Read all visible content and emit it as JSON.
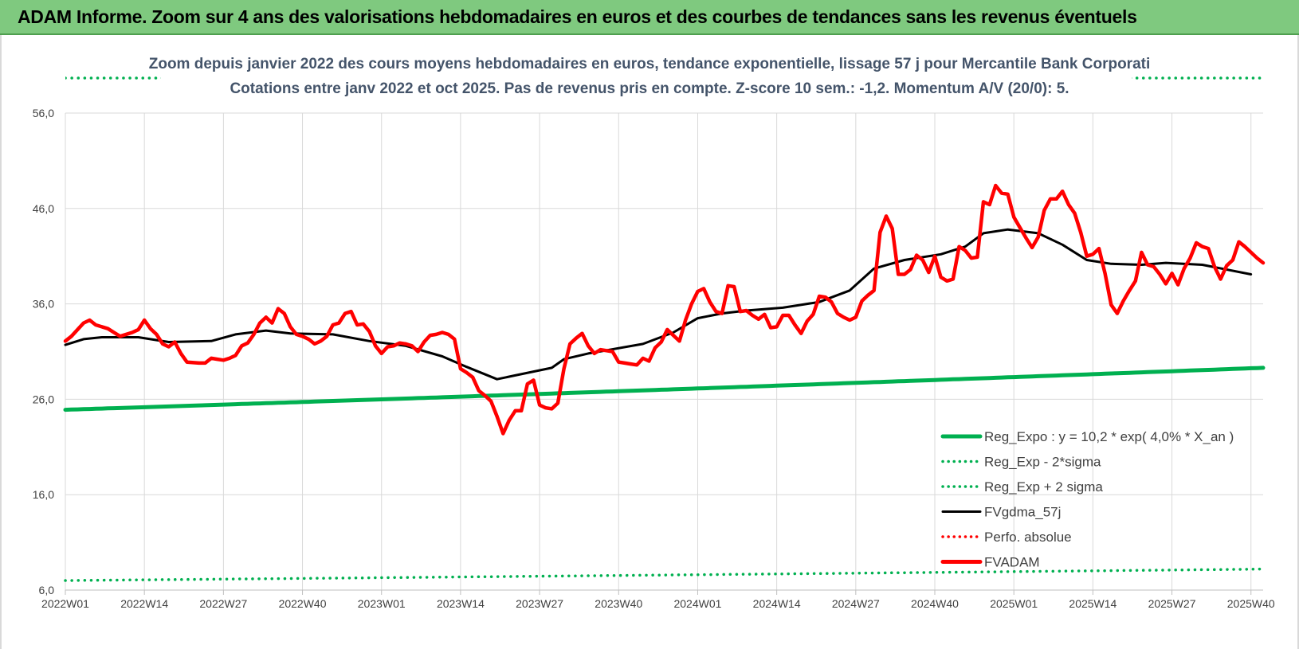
{
  "header": {
    "title": "ADAM Informe. Zoom sur 4 ans des valorisations hebdomadaires en euros et des courbes de tendances sans les revenus éventuels"
  },
  "colors": {
    "header_bg": "#7fc97f",
    "reg_expo": "#00b050",
    "fvgdma": "#000000",
    "fvadam": "#ff0000",
    "grid": "#d9d9d9"
  },
  "chart_data": {
    "type": "line",
    "title": [
      "Zoom depuis janvier 2022 des cours moyens hebdomadaires en euros, tendance exponentielle, lissage 57 j pour Mercantile Bank Corporati",
      "Cotations entre janv 2022 et oct 2025. Pas de revenus pris en compte. Z-score 10 sem.: -1,2. Momentum A/V (20/0): 5."
    ],
    "ylim": [
      6,
      56
    ],
    "yticks": [
      6,
      16,
      26,
      36,
      46,
      56
    ],
    "ytick_labels": [
      "6,0",
      "16,0",
      "26,0",
      "36,0",
      "46,0",
      "56,0"
    ],
    "n_weeks": 197,
    "xtick_labels": [
      "2022W01",
      "2022W14",
      "2022W27",
      "2022W40",
      "2023W01",
      "2023W14",
      "2023W27",
      "2023W40",
      "2024W01",
      "2024W14",
      "2024W27",
      "2024W40",
      "2025W01",
      "2025W14",
      "2025W27",
      "2025W40"
    ],
    "xtick_index": [
      0,
      13,
      26,
      39,
      52,
      65,
      78,
      91,
      104,
      117,
      130,
      143,
      156,
      169,
      182,
      195
    ],
    "legend": [
      {
        "label": "Reg_Expo : y = 10,2 * exp( 4,0% * X_an )",
        "style": "solid-thick",
        "color": "#00b050"
      },
      {
        "label": "Reg_Exp - 2*sigma",
        "style": "dotted",
        "color": "#00b050"
      },
      {
        "label": "Reg_Exp + 2 sigma",
        "style": "dotted",
        "color": "#00b050"
      },
      {
        "label": "FVgdma_57j",
        "style": "solid",
        "color": "#000000"
      },
      {
        "label": "Perfo. absolue",
        "style": "dotted",
        "color": "#ff0000"
      },
      {
        "label": "FVADAM",
        "style": "solid-thick",
        "color": "#ff0000"
      }
    ],
    "series": [
      {
        "name": "Reg_Expo",
        "expo": {
          "start": 24.9,
          "end": 29.3
        }
      },
      {
        "name": "Reg_Exp - 2*sigma",
        "expo": {
          "start": 7.0,
          "end": 8.2
        }
      },
      {
        "name": "Reg_Exp + 2 sigma",
        "expo": {
          "start": 60.1,
          "end": 60.1
        }
      },
      {
        "name": "FVgdma_57j",
        "points": [
          [
            0,
            31.7
          ],
          [
            3,
            32.3
          ],
          [
            6,
            32.5
          ],
          [
            12,
            32.5
          ],
          [
            17,
            32.0
          ],
          [
            24,
            32.1
          ],
          [
            28,
            32.8
          ],
          [
            33,
            33.2
          ],
          [
            37,
            32.9
          ],
          [
            44,
            32.8
          ],
          [
            50,
            32.1
          ],
          [
            56,
            31.6
          ],
          [
            62,
            30.5
          ],
          [
            66,
            29.4
          ],
          [
            71,
            28.1
          ],
          [
            74,
            28.5
          ],
          [
            80,
            29.3
          ],
          [
            82,
            30.2
          ],
          [
            86,
            30.8
          ],
          [
            95,
            31.8
          ],
          [
            100,
            33.0
          ],
          [
            104,
            34.5
          ],
          [
            108,
            35.0
          ],
          [
            112,
            35.3
          ],
          [
            118,
            35.6
          ],
          [
            124,
            36.2
          ],
          [
            129,
            37.4
          ],
          [
            133,
            39.7
          ],
          [
            138,
            40.6
          ],
          [
            144,
            41.2
          ],
          [
            148,
            42.0
          ],
          [
            151,
            43.4
          ],
          [
            155,
            43.8
          ],
          [
            160,
            43.4
          ],
          [
            164,
            42.2
          ],
          [
            168,
            40.6
          ],
          [
            172,
            40.2
          ],
          [
            177,
            40.1
          ],
          [
            181,
            40.3
          ],
          [
            187,
            40.1
          ],
          [
            195,
            39.1
          ]
        ]
      },
      {
        "name": "FVADAM",
        "points": [
          [
            0,
            32.1
          ],
          [
            1,
            32.6
          ],
          [
            3,
            34.0
          ],
          [
            4,
            34.3
          ],
          [
            5,
            33.8
          ],
          [
            7,
            33.4
          ],
          [
            8,
            33.0
          ],
          [
            9,
            32.6
          ],
          [
            11,
            33.0
          ],
          [
            12,
            33.3
          ],
          [
            13,
            34.3
          ],
          [
            14,
            33.4
          ],
          [
            15,
            32.8
          ],
          [
            16,
            31.8
          ],
          [
            17,
            31.5
          ],
          [
            18,
            32.0
          ],
          [
            19,
            30.8
          ],
          [
            20,
            29.9
          ],
          [
            22,
            29.8
          ],
          [
            23,
            29.8
          ],
          [
            24,
            30.3
          ],
          [
            25,
            30.2
          ],
          [
            26,
            30.1
          ],
          [
            27,
            30.3
          ],
          [
            28,
            30.6
          ],
          [
            29,
            31.6
          ],
          [
            30,
            31.9
          ],
          [
            31,
            32.8
          ],
          [
            32,
            34.0
          ],
          [
            33,
            34.6
          ],
          [
            34,
            34.0
          ],
          [
            35,
            35.5
          ],
          [
            36,
            35.0
          ],
          [
            37,
            33.6
          ],
          [
            38,
            32.8
          ],
          [
            39,
            32.6
          ],
          [
            40,
            32.3
          ],
          [
            41,
            31.8
          ],
          [
            42,
            32.1
          ],
          [
            43,
            32.6
          ],
          [
            44,
            33.8
          ],
          [
            45,
            34.0
          ],
          [
            46,
            35.0
          ],
          [
            47,
            35.2
          ],
          [
            48,
            33.8
          ],
          [
            49,
            33.9
          ],
          [
            50,
            33.1
          ],
          [
            51,
            31.6
          ],
          [
            52,
            30.8
          ],
          [
            53,
            31.5
          ],
          [
            54,
            31.6
          ],
          [
            55,
            31.9
          ],
          [
            56,
            31.8
          ],
          [
            57,
            31.6
          ],
          [
            58,
            31.0
          ],
          [
            59,
            32.0
          ],
          [
            60,
            32.7
          ],
          [
            61,
            32.8
          ],
          [
            62,
            33.0
          ],
          [
            63,
            32.8
          ],
          [
            64,
            32.3
          ],
          [
            65,
            29.2
          ],
          [
            66,
            28.8
          ],
          [
            67,
            28.3
          ],
          [
            68,
            26.9
          ],
          [
            69,
            26.4
          ],
          [
            70,
            25.8
          ],
          [
            71,
            24.2
          ],
          [
            72,
            22.4
          ],
          [
            73,
            23.8
          ],
          [
            74,
            24.8
          ],
          [
            75,
            24.8
          ],
          [
            76,
            27.6
          ],
          [
            77,
            28.0
          ],
          [
            78,
            25.4
          ],
          [
            79,
            25.1
          ],
          [
            80,
            25.0
          ],
          [
            81,
            25.6
          ],
          [
            82,
            29.2
          ],
          [
            83,
            31.8
          ],
          [
            84,
            32.4
          ],
          [
            85,
            32.9
          ],
          [
            86,
            31.6
          ],
          [
            87,
            30.8
          ],
          [
            88,
            31.2
          ],
          [
            89,
            31.1
          ],
          [
            90,
            31.0
          ],
          [
            91,
            29.9
          ],
          [
            92,
            29.8
          ],
          [
            93,
            29.7
          ],
          [
            94,
            29.6
          ],
          [
            95,
            30.3
          ],
          [
            96,
            30.0
          ],
          [
            97,
            31.4
          ],
          [
            98,
            32.0
          ],
          [
            99,
            33.3
          ],
          [
            100,
            32.7
          ],
          [
            101,
            32.1
          ],
          [
            102,
            34.3
          ],
          [
            103,
            36.0
          ],
          [
            104,
            37.3
          ],
          [
            105,
            37.6
          ],
          [
            106,
            36.2
          ],
          [
            107,
            35.2
          ],
          [
            108,
            35.0
          ],
          [
            109,
            37.9
          ],
          [
            110,
            37.8
          ],
          [
            111,
            35.2
          ],
          [
            112,
            35.3
          ],
          [
            113,
            34.8
          ],
          [
            114,
            34.4
          ],
          [
            115,
            34.9
          ],
          [
            116,
            33.5
          ],
          [
            117,
            33.6
          ],
          [
            118,
            34.8
          ],
          [
            119,
            34.8
          ],
          [
            120,
            33.8
          ],
          [
            121,
            32.9
          ],
          [
            122,
            34.2
          ],
          [
            123,
            34.9
          ],
          [
            124,
            36.8
          ],
          [
            125,
            36.7
          ],
          [
            126,
            36.2
          ],
          [
            127,
            35.0
          ],
          [
            128,
            34.6
          ],
          [
            129,
            34.3
          ],
          [
            130,
            34.6
          ],
          [
            131,
            36.3
          ],
          [
            132,
            36.9
          ],
          [
            133,
            37.4
          ],
          [
            134,
            43.5
          ],
          [
            135,
            45.2
          ],
          [
            136,
            43.9
          ],
          [
            137,
            39.1
          ],
          [
            138,
            39.1
          ],
          [
            139,
            39.6
          ],
          [
            140,
            41.1
          ],
          [
            141,
            40.6
          ],
          [
            142,
            39.3
          ],
          [
            143,
            41.0
          ],
          [
            144,
            38.8
          ],
          [
            145,
            38.4
          ],
          [
            146,
            38.6
          ],
          [
            147,
            42.0
          ],
          [
            148,
            41.6
          ],
          [
            149,
            40.8
          ],
          [
            150,
            40.9
          ],
          [
            151,
            46.7
          ],
          [
            152,
            46.4
          ],
          [
            153,
            48.4
          ],
          [
            154,
            47.6
          ],
          [
            155,
            47.5
          ],
          [
            156,
            45.1
          ],
          [
            157,
            44.0
          ],
          [
            158,
            42.9
          ],
          [
            159,
            41.9
          ],
          [
            160,
            43.0
          ],
          [
            161,
            45.8
          ],
          [
            162,
            47.0
          ],
          [
            163,
            47.0
          ],
          [
            164,
            47.8
          ],
          [
            165,
            46.4
          ],
          [
            166,
            45.5
          ],
          [
            167,
            43.5
          ],
          [
            168,
            41.0
          ],
          [
            169,
            41.2
          ],
          [
            170,
            41.8
          ],
          [
            171,
            39.2
          ],
          [
            172,
            35.9
          ],
          [
            173,
            35.0
          ],
          [
            174,
            36.3
          ],
          [
            175,
            37.4
          ],
          [
            176,
            38.4
          ],
          [
            177,
            41.4
          ],
          [
            178,
            40.1
          ],
          [
            179,
            39.9
          ],
          [
            180,
            39.1
          ],
          [
            181,
            38.1
          ],
          [
            182,
            39.2
          ],
          [
            183,
            38.0
          ],
          [
            184,
            39.7
          ],
          [
            185,
            40.8
          ],
          [
            186,
            42.4
          ],
          [
            187,
            42.0
          ],
          [
            188,
            41.8
          ],
          [
            189,
            39.9
          ],
          [
            190,
            38.6
          ],
          [
            191,
            40.0
          ],
          [
            192,
            40.6
          ],
          [
            193,
            42.5
          ],
          [
            194,
            42.0
          ],
          [
            195,
            41.4
          ],
          [
            196,
            40.8
          ],
          [
            197,
            40.3
          ]
        ]
      }
    ]
  }
}
